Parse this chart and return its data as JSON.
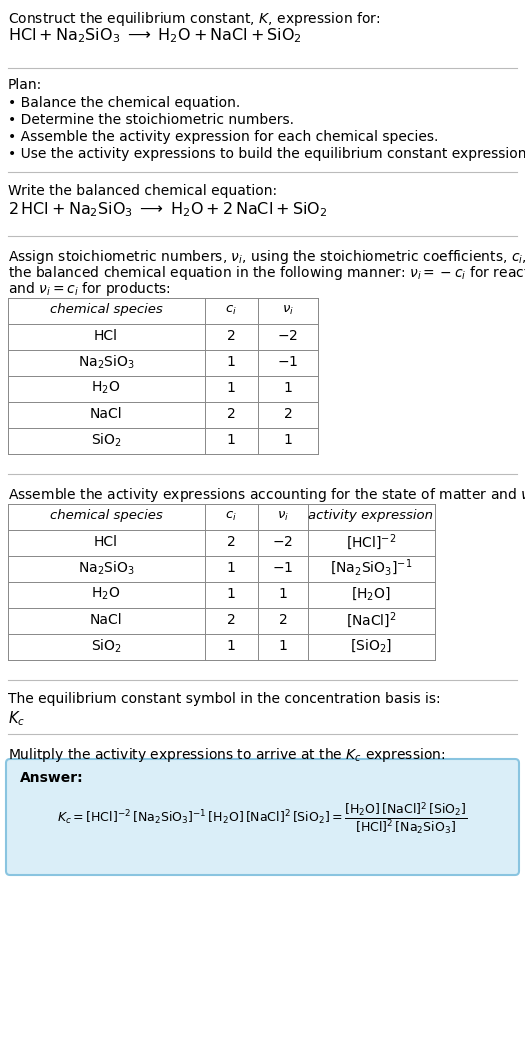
{
  "bg_color": "#ffffff",
  "answer_bg_color": "#daeef8",
  "answer_border_color": "#89c4e0",
  "t1_species": [
    "HCl",
    "$\\mathrm{Na_2SiO_3}$",
    "$\\mathrm{H_2O}$",
    "NaCl",
    "$\\mathrm{SiO_2}$"
  ],
  "t1_ci": [
    "2",
    "1",
    "1",
    "2",
    "1"
  ],
  "t1_vi": [
    "$-2$",
    "$-1$",
    "1",
    "2",
    "1"
  ],
  "t2_activity": [
    "$[\\mathrm{HCl}]^{-2}$",
    "$[\\mathrm{Na_2SiO_3}]^{-1}$",
    "$[\\mathrm{H_2O}]$",
    "$[\\mathrm{NaCl}]^{2}$",
    "$[\\mathrm{SiO_2}]$"
  ]
}
